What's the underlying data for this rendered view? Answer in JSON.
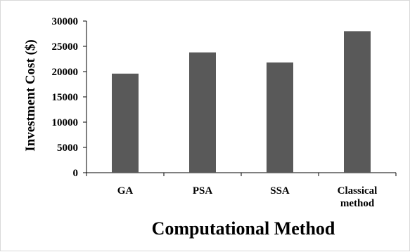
{
  "chart_data": {
    "type": "bar",
    "categories": [
      [
        "GA"
      ],
      [
        "PSA"
      ],
      [
        "SSA"
      ],
      [
        "Classical",
        "method"
      ]
    ],
    "values": [
      19600,
      23800,
      21800,
      28000
    ],
    "xlabel": "Computational Method",
    "ylabel": "Investment Cost ($)",
    "ylim": [
      0,
      30000
    ],
    "yticks": [
      0,
      5000,
      10000,
      15000,
      20000,
      25000,
      30000
    ],
    "grid": false,
    "bar_color": "#595959"
  }
}
